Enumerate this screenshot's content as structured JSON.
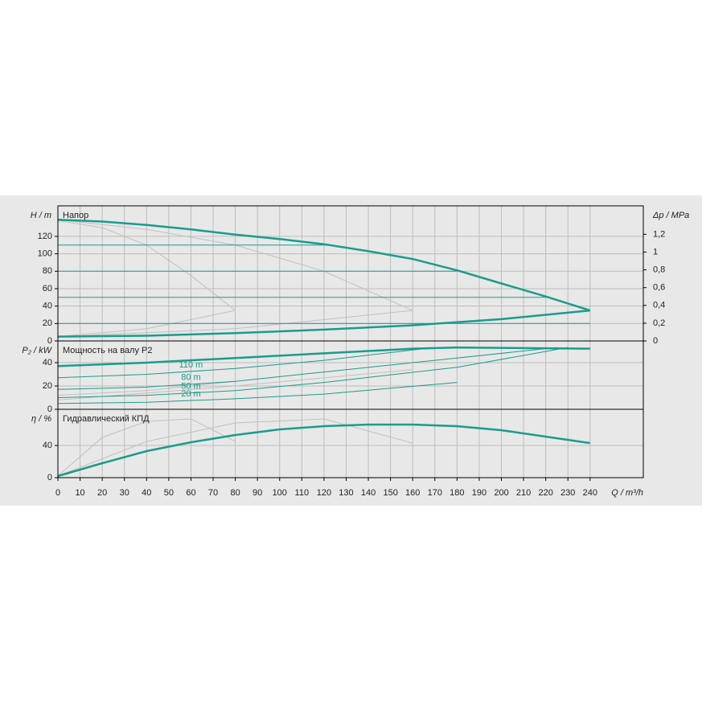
{
  "chart_data": [
    {
      "type": "line",
      "title": "Напор",
      "ylabel": "H / m",
      "y2label": "Δp / MPa",
      "xlim": [
        0,
        264
      ],
      "xticks": [
        0,
        10,
        20,
        30,
        40,
        50,
        60,
        70,
        80,
        90,
        100,
        110,
        120,
        130,
        140,
        150,
        160,
        170,
        180,
        190,
        200,
        210,
        220,
        230,
        240
      ],
      "ylim": [
        0,
        155
      ],
      "yticks": [
        0,
        20,
        40,
        60,
        80,
        100,
        120
      ],
      "y2lim": [
        0,
        1.52
      ],
      "y2ticks": [
        0,
        {
          "value": 0.2,
          "label": "0,2"
        },
        {
          "value": 0.4,
          "label": "0,4"
        },
        {
          "value": 0.6,
          "label": "0,6"
        },
        {
          "value": 0.8,
          "label": "0,8"
        },
        1,
        {
          "value": 1.2,
          "label": "1,2"
        }
      ],
      "grid": true,
      "series": [
        {
          "color": "#c0c0c0",
          "width": 1,
          "x": [
            0,
            20,
            40,
            60,
            80
          ],
          "values": [
            138,
            130,
            110,
            75,
            35
          ]
        },
        {
          "color": "#c0c0c0",
          "width": 1,
          "x": [
            0,
            40,
            80,
            120,
            160
          ],
          "values": [
            139,
            128,
            110,
            80,
            35
          ]
        },
        {
          "color": "#c0c0c0",
          "width": 1,
          "x": [
            0,
            40,
            80
          ],
          "values": [
            5,
            14,
            35
          ]
        },
        {
          "color": "#c0c0c0",
          "width": 1,
          "x": [
            0,
            80,
            160
          ],
          "values": [
            5,
            14,
            35
          ]
        },
        {
          "color": "#1a9c8c",
          "width": 1,
          "x": [
            0,
            122
          ],
          "values": [
            110,
            110
          ]
        },
        {
          "color": "#1a9c8c",
          "width": 1,
          "x": [
            0,
            180
          ],
          "values": [
            80,
            80
          ]
        },
        {
          "color": "#1a9c8c",
          "width": 1,
          "x": [
            0,
            222
          ],
          "values": [
            50,
            50
          ]
        },
        {
          "color": "#1a9c8c",
          "width": 1,
          "x": [
            0,
            240
          ],
          "values": [
            20,
            20
          ]
        },
        {
          "color": "#1a9c8c",
          "width": 2.5,
          "x": [
            0,
            20,
            40,
            60,
            80,
            100,
            120,
            140,
            160,
            180,
            200,
            220,
            240
          ],
          "values": [
            139,
            137,
            133,
            128,
            122,
            117,
            111,
            103,
            94,
            81,
            66,
            51,
            35
          ]
        },
        {
          "color": "#1a9c8c",
          "width": 2.5,
          "x": [
            0,
            40,
            80,
            120,
            160,
            200,
            240
          ],
          "values": [
            5,
            6,
            9,
            13,
            18,
            25,
            35
          ]
        }
      ]
    },
    {
      "type": "line",
      "title": "Мощность на валу P2",
      "ylabel": "P₂ / kW",
      "xlim": [
        0,
        264
      ],
      "xticks": [
        0,
        10,
        20,
        30,
        40,
        50,
        60,
        70,
        80,
        90,
        100,
        110,
        120,
        130,
        140,
        150,
        160,
        170,
        180,
        190,
        200,
        210,
        220,
        230,
        240
      ],
      "ylim": [
        0,
        58.6
      ],
      "yticks": [
        0,
        20,
        40
      ],
      "grid": true,
      "series": [
        {
          "color": "#c0c0c0",
          "width": 1,
          "x": [
            0,
            40,
            80
          ],
          "values": [
            12,
            16,
            24
          ]
        },
        {
          "color": "#c0c0c0",
          "width": 1,
          "x": [
            0,
            80,
            160
          ],
          "values": [
            8,
            20,
            34
          ]
        },
        {
          "name": "110 m",
          "color": "#1a9c8c",
          "width": 1,
          "x": [
            0,
            40,
            80,
            120,
            165,
            180
          ],
          "values": [
            27,
            30,
            35,
            42,
            52,
            53
          ]
        },
        {
          "name": "80 m",
          "color": "#1a9c8c",
          "width": 1,
          "x": [
            0,
            40,
            80,
            120,
            180,
            225
          ],
          "values": [
            17,
            19,
            24,
            32,
            44,
            53
          ]
        },
        {
          "name": "50 m",
          "color": "#1a9c8c",
          "width": 1,
          "x": [
            0,
            40,
            80,
            120,
            180,
            230
          ],
          "values": [
            10,
            12,
            16,
            23,
            36,
            53
          ]
        },
        {
          "name": "20 m",
          "color": "#1a9c8c",
          "width": 1,
          "x": [
            0,
            40,
            80,
            120,
            180
          ],
          "values": [
            5,
            6,
            9,
            13,
            23
          ]
        },
        {
          "color": "#1a9c8c",
          "width": 2.5,
          "x": [
            0,
            40,
            80,
            120,
            160,
            180,
            240
          ],
          "values": [
            37,
            40,
            44,
            48,
            52,
            53,
            52
          ]
        }
      ]
    },
    {
      "type": "line",
      "title": "Гидравлический КПД",
      "ylabel": "η / %",
      "xlabel": "Q / m³/h",
      "xlim": [
        0,
        264
      ],
      "xticks": [
        0,
        10,
        20,
        30,
        40,
        50,
        60,
        70,
        80,
        90,
        100,
        110,
        120,
        130,
        140,
        150,
        160,
        170,
        180,
        190,
        200,
        210,
        220,
        230,
        240
      ],
      "ylim": [
        0,
        85
      ],
      "yticks": [
        0,
        40
      ],
      "grid": true,
      "series": [
        {
          "color": "#c0c0c0",
          "width": 1,
          "x": [
            0,
            20,
            40,
            60,
            80
          ],
          "values": [
            2,
            50,
            70,
            73,
            45
          ]
        },
        {
          "color": "#c0c0c0",
          "width": 1,
          "x": [
            0,
            40,
            80,
            120,
            160
          ],
          "values": [
            2,
            45,
            68,
            73,
            43
          ]
        },
        {
          "color": "#1a9c8c",
          "width": 2.5,
          "x": [
            0,
            20,
            40,
            60,
            80,
            100,
            120,
            140,
            160,
            180,
            200,
            220,
            240
          ],
          "values": [
            2,
            18,
            33,
            44,
            53,
            60,
            64,
            66,
            66,
            64,
            59,
            51,
            43
          ]
        }
      ]
    }
  ]
}
